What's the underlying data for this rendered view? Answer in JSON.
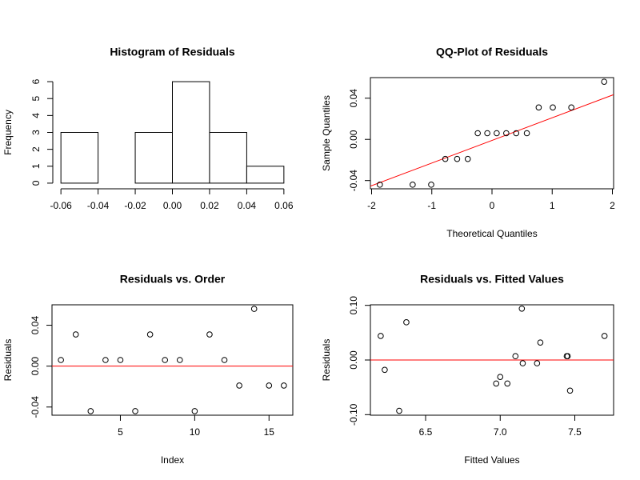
{
  "chart_data": [
    {
      "type": "histogram",
      "title": "Histogram of Residuals",
      "y_label": "Frequency",
      "bins": [
        -0.06,
        -0.04,
        -0.02,
        0,
        0.02,
        0.04,
        0.06
      ],
      "values": [
        3,
        0,
        3,
        6,
        3,
        1
      ],
      "color": "#ffffff",
      "xlim": [
        -0.0648,
        0.0648
      ],
      "ylim": [
        -0.24,
        6.24
      ],
      "xticks": [
        -0.06,
        -0.04,
        -0.02,
        {
          "value": 0,
          "label": "0.00"
        },
        0.02,
        0.04,
        0.06
      ],
      "yticks": [
        0,
        1,
        2,
        3,
        4,
        5,
        6
      ],
      "box": false
    },
    {
      "type": "scatter",
      "title": "QQ-Plot of Residuals",
      "x_label": "Theoretical Quantiles",
      "y_label": "Sample Quantiles",
      "x": [
        -1.863,
        -1.318,
        -1.01,
        -0.776,
        -0.579,
        -0.402,
        -0.237,
        -0.078,
        0.078,
        0.237,
        0.402,
        0.579,
        0.776,
        1.01,
        1.318,
        1.863
      ],
      "values": [
        -0.044,
        -0.044,
        -0.044,
        -0.019,
        -0.019,
        -0.019,
        0.006,
        0.006,
        0.006,
        0.006,
        0.006,
        0.006,
        0.031,
        0.031,
        0.031,
        0.056
      ],
      "reference_line": {
        "intercept": -0.001,
        "slope": 0.022,
        "color": "#ff0000"
      },
      "xlim": [
        -2.02,
        2.02
      ],
      "ylim": [
        -0.048,
        0.06
      ],
      "xticks": [
        -2,
        -1,
        0,
        1,
        2
      ],
      "yticks": [
        -0.04,
        {
          "value": 0,
          "label": "0.00"
        },
        0.04
      ],
      "box": true
    },
    {
      "type": "scatter",
      "title": "Residuals vs. Order",
      "x_label": "Index",
      "y_label": "Residuals",
      "x": [
        1,
        2,
        3,
        4,
        5,
        6,
        7,
        8,
        9,
        10,
        11,
        12,
        13,
        14,
        15,
        16
      ],
      "values": [
        0.006,
        0.031,
        -0.044,
        0.006,
        0.006,
        -0.044,
        0.031,
        0.006,
        0.006,
        -0.044,
        0.031,
        0.006,
        -0.019,
        0.056,
        -0.019,
        -0.019
      ],
      "hline": {
        "value": 0,
        "color": "#ff0000"
      },
      "xlim": [
        0.4,
        16.6
      ],
      "ylim": [
        -0.048,
        0.06
      ],
      "xticks": [
        5,
        10,
        15
      ],
      "yticks": [
        -0.04,
        {
          "value": 0,
          "label": "0.00"
        },
        0.04
      ],
      "box": true
    },
    {
      "type": "scatter",
      "title": "Residuals vs. Fitted Values",
      "x_label": "Fitted Values",
      "y_label": "Residuals",
      "x": [
        6.199,
        6.226,
        6.323,
        6.371,
        6.973,
        7.0,
        7.048,
        7.102,
        7.145,
        7.151,
        7.247,
        7.269,
        7.446,
        7.452,
        7.468,
        7.699
      ],
      "values": [
        0.044,
        -0.018,
        -0.093,
        0.069,
        -0.043,
        -0.031,
        -0.043,
        0.007,
        0.094,
        -0.006,
        -0.006,
        0.032,
        0.007,
        0.007,
        -0.056,
        0.044
      ],
      "hline": {
        "value": 0,
        "color": "#ff0000"
      },
      "xlim": [
        6.13,
        7.76
      ],
      "ylim": [
        -0.101,
        0.101
      ],
      "xticks": [
        6.5,
        {
          "value": 7,
          "label": "7.0"
        },
        7.5
      ],
      "yticks": [
        {
          "value": -0.1,
          "label": "-0.10"
        },
        {
          "value": 0,
          "label": "0.00"
        },
        {
          "value": 0.1,
          "label": "0.10"
        }
      ],
      "box": true
    }
  ]
}
